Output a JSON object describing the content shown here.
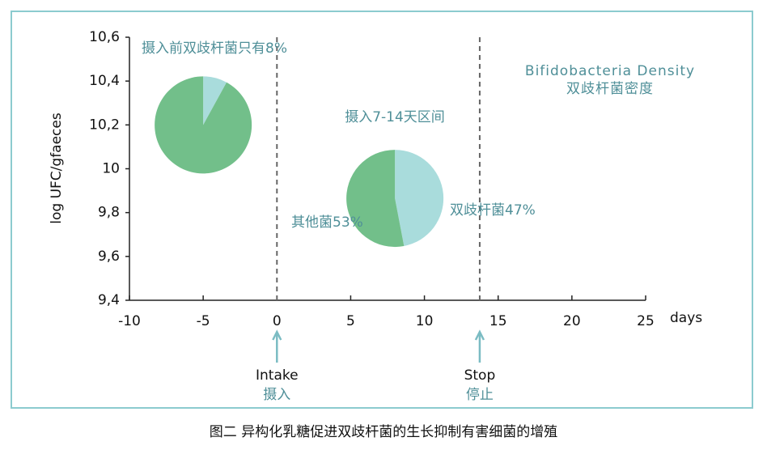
{
  "chart_data": {
    "type": "pie",
    "x_label": "days",
    "y_label": "log UFC/gfaeces",
    "xlim": [
      -10,
      25
    ],
    "xticks": [
      -10,
      -5,
      0,
      5,
      10,
      15,
      20,
      25
    ],
    "ylim": [
      9.4,
      10.6
    ],
    "yticks": [
      {
        "value": 9.4,
        "label": "9,4"
      },
      {
        "value": 9.6,
        "label": "9,6"
      },
      {
        "value": 9.8,
        "label": "9,8"
      },
      10,
      {
        "value": 10.2,
        "label": "10,2"
      },
      {
        "value": 10.4,
        "label": "10,4"
      },
      {
        "value": 10.6,
        "label": "10,6"
      }
    ],
    "pies": [
      {
        "x": -5,
        "y": 10.2,
        "values": [
          8,
          92
        ],
        "colors": [
          "#a9dcdc",
          "#72bf8a"
        ],
        "value_labels": [
          "摄入前双歧杆菌只有8%",
          null
        ]
      },
      {
        "x": 8,
        "y": 9.865,
        "values": [
          47,
          53
        ],
        "colors": [
          "#a9dcdc",
          "#72bf8a"
        ],
        "value_labels": [
          "双歧杆菌47%",
          "其他菌53%"
        ]
      }
    ],
    "events": [
      {
        "x": 0,
        "label": "Intake",
        "label_cn": "摄入"
      },
      {
        "x": 13.75,
        "label": "Stop",
        "label_cn": "停止"
      }
    ],
    "annotations": [
      "Bifidobacteria Density",
      "双歧杆菌密度",
      "摄入7-14天区间"
    ],
    "caption": "图二 异构化乳糖促进双歧杆菌的生长抑制有害细菌的增殖"
  }
}
